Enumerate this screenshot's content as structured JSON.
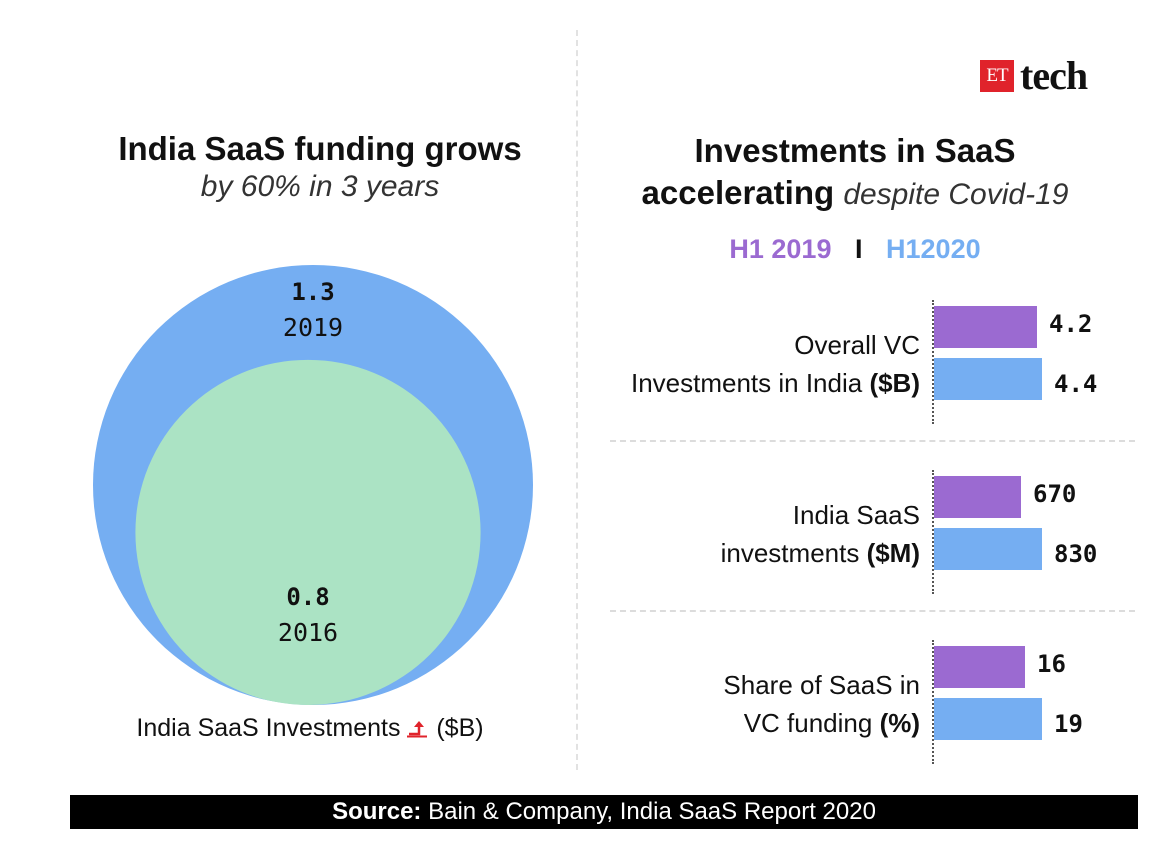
{
  "brand": {
    "box_text": "ET",
    "word": "tech",
    "box_color": "#e0232b"
  },
  "left": {
    "title": "India SaaS funding grows",
    "subtitle": "by 60% in 3 years",
    "caption_pre": "India SaaS Investments",
    "caption_post": "($B)"
  },
  "right": {
    "title_line1": "Investments in SaaS",
    "title_line2_bold": "accelerating",
    "title_line2_italic": "despite Covid-19",
    "legend_a": "H1 2019",
    "legend_sep": "I",
    "legend_b": "H12020"
  },
  "source": {
    "label": "Source:",
    "text": "Bain & Company, India SaaS Report 2020"
  },
  "chart_data": [
    {
      "type": "bubble",
      "title": "India SaaS funding grows",
      "unit": "$B",
      "points": [
        {
          "year": "2019",
          "value": 1.3,
          "value_label": "1.3",
          "color": "#75aef2"
        },
        {
          "year": "2016",
          "value": 0.8,
          "value_label": "0.8",
          "color": "#abe3c4"
        }
      ]
    },
    {
      "type": "bar",
      "orientation": "horizontal",
      "title": "Investments in SaaS accelerating despite Covid-19",
      "series_names": [
        "H1 2019",
        "H12020"
      ],
      "series_colors": [
        "#9b6ad1",
        "#75aef2"
      ],
      "groups": [
        {
          "label_line1": "Overall VC",
          "label_line2": "Investments in India",
          "unit": "($B)",
          "values": [
            4.2,
            4.4
          ],
          "value_labels": [
            "4.2",
            "4.4"
          ],
          "ref_max": 4.4
        },
        {
          "label_line1": "India SaaS",
          "label_line2": "investments",
          "unit": "($M)",
          "values": [
            670,
            830
          ],
          "value_labels": [
            "670",
            "830"
          ],
          "ref_max": 830
        },
        {
          "label_line1": "Share of SaaS in",
          "label_line2": "VC funding",
          "unit": "(%)",
          "values": [
            16,
            19
          ],
          "value_labels": [
            "16",
            "19"
          ],
          "ref_max": 19
        }
      ]
    }
  ]
}
